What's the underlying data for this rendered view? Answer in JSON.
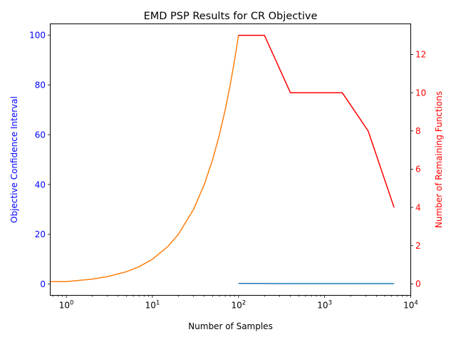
{
  "chart_data": {
    "type": "line",
    "title": "EMD PSP Results for CR Objective",
    "xlabel": "Number of Samples",
    "ylabel_left": "Objective Confidence Interval",
    "ylabel_right": "Number of Remaining Functions",
    "x_scale": "log",
    "xlim": [
      0.65,
      10000
    ],
    "ylim_left": [
      -4.5,
      104.5
    ],
    "ylim_right": [
      -0.6,
      13.6
    ],
    "x_ticks": [
      {
        "value": 1,
        "base": "10",
        "exp": "0"
      },
      {
        "value": 10,
        "base": "10",
        "exp": "1"
      },
      {
        "value": 100,
        "base": "10",
        "exp": "2"
      },
      {
        "value": 1000,
        "base": "10",
        "exp": "3"
      },
      {
        "value": 10000,
        "base": "10",
        "exp": "4"
      }
    ],
    "y_ticks_left": [
      "0",
      "20",
      "40",
      "60",
      "80",
      "100"
    ],
    "y_ticks_right": [
      "0",
      "2",
      "4",
      "6",
      "8",
      "10",
      "12"
    ],
    "grid": false,
    "legend": "none",
    "colors": {
      "left_axis": "#0000ff",
      "right_axis": "#ff0000",
      "series_orange": "#ff7f0e",
      "series_blue": "#1f77b4",
      "series_red": "#ff0000"
    },
    "series": [
      {
        "axis": "left",
        "color": "#ff7f0e",
        "x": [
          0.65,
          1,
          2,
          3,
          5,
          7,
          10,
          15,
          20,
          30,
          40,
          50,
          60,
          70,
          80,
          90,
          100
        ],
        "y": [
          1,
          1,
          2,
          3,
          5,
          7,
          10,
          15,
          20,
          30,
          40,
          50,
          60,
          70,
          80,
          90,
          100
        ]
      },
      {
        "axis": "left",
        "color": "#1f77b4",
        "x": [
          100,
          200,
          400,
          800,
          1600,
          3200,
          6400
        ],
        "y": [
          0.3,
          0.25,
          0.2,
          0.2,
          0.2,
          0.2,
          0.2
        ]
      },
      {
        "axis": "right",
        "color": "#ff0000",
        "x": [
          100,
          200,
          400,
          800,
          1600,
          3200,
          6400
        ],
        "y": [
          13,
          13,
          10,
          10,
          10,
          8,
          4
        ]
      }
    ]
  }
}
